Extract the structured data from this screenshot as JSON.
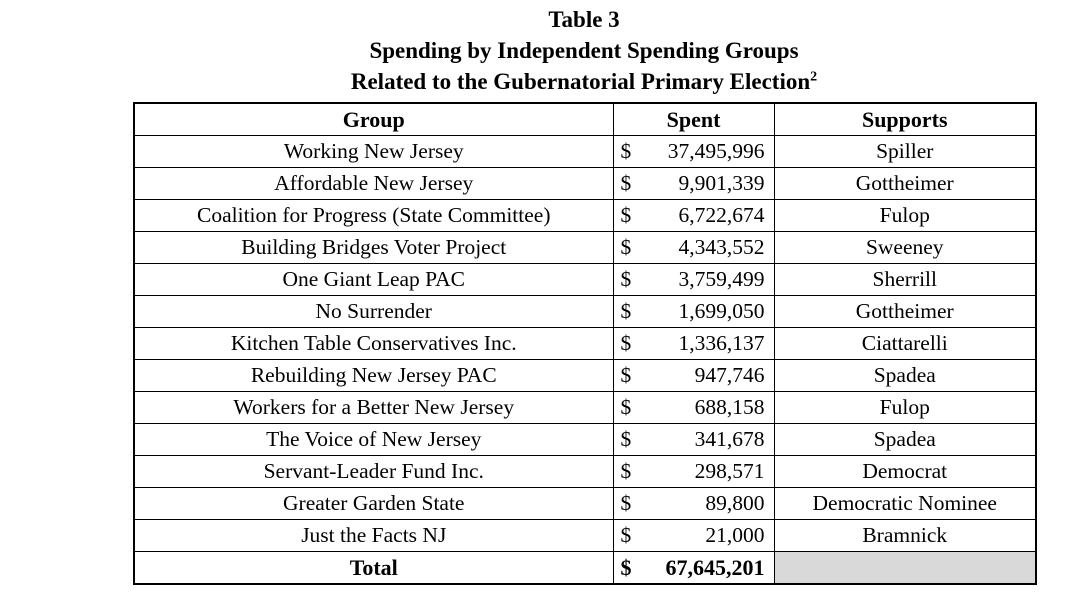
{
  "title": {
    "line1": "Table 3",
    "line2": "Spending by Independent Spending Groups",
    "line3": "Related to the Gubernatorial Primary Election",
    "footnote_marker": "2"
  },
  "table": {
    "headers": [
      "Group",
      "Spent",
      "Supports"
    ],
    "currency_symbol": "$",
    "rows": [
      {
        "group": "Working New Jersey",
        "spent": "37,495,996",
        "supports": "Spiller"
      },
      {
        "group": "Affordable New Jersey",
        "spent": "9,901,339",
        "supports": "Gottheimer"
      },
      {
        "group": "Coalition for Progress (State Committee)",
        "spent": "6,722,674",
        "supports": "Fulop"
      },
      {
        "group": "Building Bridges Voter Project",
        "spent": "4,343,552",
        "supports": "Sweeney"
      },
      {
        "group": "One Giant Leap PAC",
        "spent": "3,759,499",
        "supports": "Sherrill"
      },
      {
        "group": "No Surrender",
        "spent": "1,699,050",
        "supports": "Gottheimer"
      },
      {
        "group": "Kitchen Table Conservatives Inc.",
        "spent": "1,336,137",
        "supports": "Ciattarelli"
      },
      {
        "group": "Rebuilding New Jersey PAC",
        "spent": "947,746",
        "supports": "Spadea"
      },
      {
        "group": "Workers for a Better New Jersey",
        "spent": "688,158",
        "supports": "Fulop"
      },
      {
        "group": "The Voice of New Jersey",
        "spent": "341,678",
        "supports": "Spadea"
      },
      {
        "group": "Servant-Leader Fund Inc.",
        "spent": "298,571",
        "supports": "Democrat"
      },
      {
        "group": "Greater Garden State",
        "spent": "89,800",
        "supports": "Democratic Nominee"
      },
      {
        "group": "Just the Facts NJ",
        "spent": "21,000",
        "supports": "Bramnick"
      }
    ],
    "total": {
      "label": "Total",
      "spent": "67,645,201",
      "supports": ""
    },
    "colors": {
      "background": "#ffffff",
      "text": "#000000",
      "border": "#000000",
      "total_supports_shade": "#d9d9d9"
    }
  }
}
